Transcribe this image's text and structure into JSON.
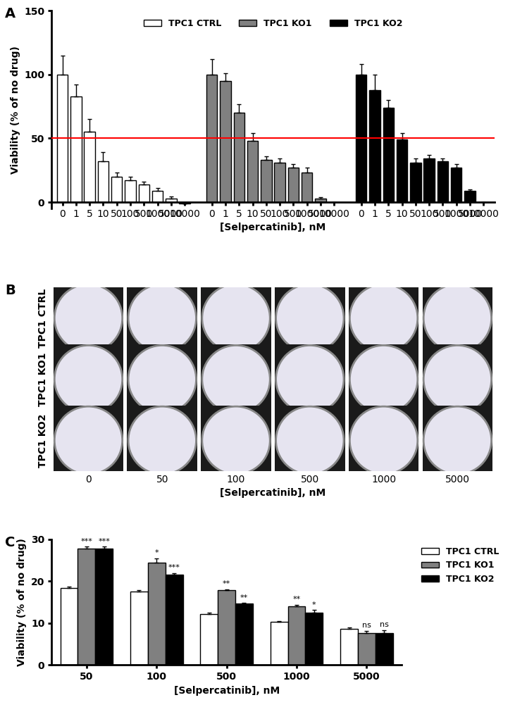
{
  "chart_data": [
    {
      "panel": "A",
      "type": "bar",
      "y_label": "Viability (% of no drug)",
      "x_label": "[Selpercatinib], nM",
      "categories": [
        "0",
        "1",
        "5",
        "10",
        "50",
        "100",
        "500",
        "1000",
        "5000",
        "10000"
      ],
      "series": [
        {
          "name": "TPC1 CTRL",
          "color": "#ffffff",
          "values": [
            100,
            83,
            55,
            32,
            20,
            17,
            14,
            9,
            3,
            -1
          ],
          "error": [
            15,
            9,
            10,
            7,
            3,
            3,
            2,
            2,
            1.5,
            0
          ]
        },
        {
          "name": "TPC1 KO1",
          "color": "#808080",
          "values": [
            100,
            95,
            70,
            48,
            33,
            31,
            27,
            23,
            3,
            0
          ],
          "error": [
            12,
            6,
            7,
            6,
            3,
            3,
            3,
            4,
            1,
            0
          ]
        },
        {
          "name": "TPC1 KO2",
          "color": "#000000",
          "values": [
            100,
            88,
            74,
            49,
            31,
            34,
            32,
            27,
            9,
            0
          ],
          "error": [
            8,
            12,
            6,
            5,
            3,
            3,
            2,
            3,
            1,
            0
          ]
        }
      ],
      "reference_line": 50,
      "reference_color": "#ff0000",
      "ylim": [
        -5,
        150
      ],
      "yticks": [
        0,
        50,
        100,
        150
      ],
      "legend": "upper center"
    },
    {
      "panel": "B",
      "type": "image_grid",
      "x_label": "[Selpercatinib], nM",
      "categories": [
        "0",
        "50",
        "100",
        "500",
        "1000",
        "5000"
      ],
      "rows": [
        "TPC1 CTRL",
        "TPC1 KO1",
        "TPC1 KO2"
      ]
    },
    {
      "panel": "C",
      "type": "bar",
      "y_label": "Viability (% of no drug)",
      "x_label": "[Selpercatinib], nM",
      "categories": [
        "50",
        "100",
        "500",
        "1000",
        "5000"
      ],
      "series": [
        {
          "name": "TPC1 CTRL",
          "color": "#ffffff",
          "values": [
            18.4,
            17.6,
            12.2,
            10.3,
            8.7
          ],
          "error": [
            0.3,
            0.2,
            0.3,
            0.2,
            0.2
          ]
        },
        {
          "name": "TPC1 KO1",
          "color": "#808080",
          "values": [
            27.8,
            24.4,
            17.8,
            14.0,
            7.6
          ],
          "error": [
            0.4,
            1.1,
            0.2,
            0.4,
            0.5
          ],
          "significance": [
            "***",
            "*",
            "**",
            "**",
            "ns"
          ]
        },
        {
          "name": "TPC1 KO2",
          "color": "#000000",
          "values": [
            27.8,
            21.6,
            14.6,
            12.5,
            7.7
          ],
          "error": [
            0.4,
            0.3,
            0.2,
            0.6,
            0.6
          ],
          "significance": [
            "***",
            "***",
            "**",
            "*",
            "ns"
          ]
        }
      ],
      "ylim": [
        0,
        30
      ],
      "yticks": [
        0,
        10,
        20,
        30
      ],
      "legend": "upper right"
    }
  ]
}
